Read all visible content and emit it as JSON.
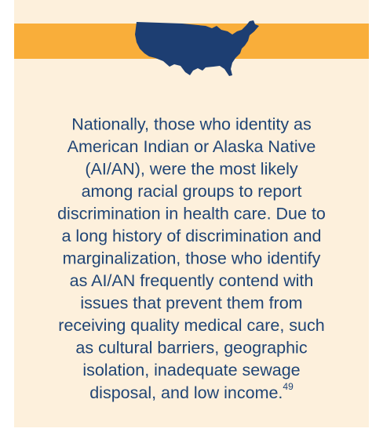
{
  "callout": {
    "lines": [
      "Nationally, those who identity as",
      "American Indian or Alaska Native",
      "(AI/AN), were the most likely",
      "among racial groups to report",
      "discrimination in health care. Due to",
      "a long history of discrimination and",
      "marginalization, those who identify",
      "as AI/AN frequently contend with",
      "issues that prevent them from",
      "receiving quality medical care, such",
      "as cultural barriers, geographic",
      "isolation, inadequate sewage",
      "disposal, and low income."
    ],
    "footnote": "49"
  }
}
